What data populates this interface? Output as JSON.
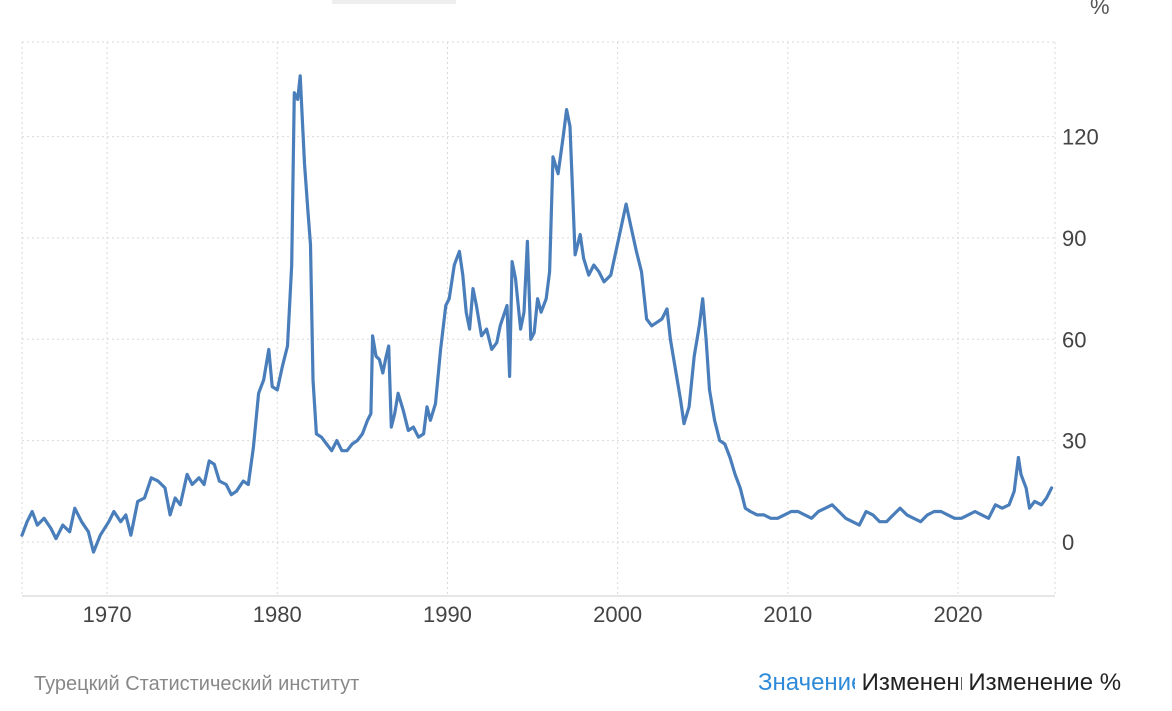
{
  "source_label": "Турецкий Статистический институт",
  "mode_tabs": [
    {
      "label": "Значение",
      "active": true
    },
    {
      "label": "Изменение",
      "active": false
    },
    {
      "label": "Изменение %",
      "active": false
    }
  ],
  "colors": {
    "line": "#4a7ebb",
    "grid": "#d9d9d9",
    "axis_text": "#444444",
    "active_tab": "#2e8ad8"
  },
  "chart_data": {
    "type": "line",
    "title": "",
    "xlabel": "",
    "ylabel": "%",
    "xlim": [
      1965.0,
      2025.7
    ],
    "ylim": [
      -16,
      148
    ],
    "yticks": [
      0,
      30,
      60,
      90,
      120
    ],
    "xticks": [
      1970,
      1980,
      1990,
      2000,
      2010,
      2020
    ],
    "grid": true,
    "legend": "none",
    "series": [
      {
        "name": "",
        "points": [
          [
            1965.0,
            2
          ],
          [
            1965.3,
            6
          ],
          [
            1965.6,
            9
          ],
          [
            1965.9,
            5
          ],
          [
            1966.3,
            7
          ],
          [
            1966.7,
            4
          ],
          [
            1967.0,
            1
          ],
          [
            1967.4,
            5
          ],
          [
            1967.8,
            3
          ],
          [
            1968.1,
            10
          ],
          [
            1968.5,
            6
          ],
          [
            1968.9,
            3
          ],
          [
            1969.2,
            -3
          ],
          [
            1969.6,
            2
          ],
          [
            1970.1,
            6
          ],
          [
            1970.4,
            9
          ],
          [
            1970.8,
            6
          ],
          [
            1971.1,
            8
          ],
          [
            1971.4,
            2
          ],
          [
            1971.8,
            12
          ],
          [
            1972.2,
            13
          ],
          [
            1972.6,
            19
          ],
          [
            1973.0,
            18
          ],
          [
            1973.4,
            16
          ],
          [
            1973.7,
            8
          ],
          [
            1974.0,
            13
          ],
          [
            1974.3,
            11
          ],
          [
            1974.7,
            20
          ],
          [
            1975.0,
            17
          ],
          [
            1975.4,
            19
          ],
          [
            1975.7,
            17
          ],
          [
            1976.0,
            24
          ],
          [
            1976.3,
            23
          ],
          [
            1976.6,
            18
          ],
          [
            1977.0,
            17
          ],
          [
            1977.3,
            14
          ],
          [
            1977.6,
            15
          ],
          [
            1978.0,
            18
          ],
          [
            1978.3,
            17
          ],
          [
            1978.6,
            28
          ],
          [
            1978.9,
            44
          ],
          [
            1979.2,
            48
          ],
          [
            1979.5,
            57
          ],
          [
            1979.7,
            46
          ],
          [
            1980.0,
            45
          ],
          [
            1980.3,
            52
          ],
          [
            1980.6,
            58
          ],
          [
            1980.85,
            82
          ],
          [
            1981.0,
            133
          ],
          [
            1981.2,
            131
          ],
          [
            1981.35,
            138
          ],
          [
            1981.6,
            112
          ],
          [
            1981.8,
            98
          ],
          [
            1981.95,
            88
          ],
          [
            1982.1,
            48
          ],
          [
            1982.3,
            32
          ],
          [
            1982.6,
            31
          ],
          [
            1982.9,
            29
          ],
          [
            1983.2,
            27
          ],
          [
            1983.5,
            30
          ],
          [
            1983.8,
            27
          ],
          [
            1984.1,
            27
          ],
          [
            1984.4,
            29
          ],
          [
            1984.7,
            30
          ],
          [
            1985.0,
            32
          ],
          [
            1985.3,
            36
          ],
          [
            1985.5,
            38
          ],
          [
            1985.6,
            61
          ],
          [
            1985.8,
            55
          ],
          [
            1986.0,
            54
          ],
          [
            1986.2,
            50
          ],
          [
            1986.4,
            55
          ],
          [
            1986.55,
            58
          ],
          [
            1986.7,
            34
          ],
          [
            1986.9,
            38
          ],
          [
            1987.1,
            44
          ],
          [
            1987.4,
            39
          ],
          [
            1987.7,
            33
          ],
          [
            1988.0,
            34
          ],
          [
            1988.3,
            31
          ],
          [
            1988.6,
            32
          ],
          [
            1988.8,
            40
          ],
          [
            1989.0,
            36
          ],
          [
            1989.3,
            41
          ],
          [
            1989.6,
            57
          ],
          [
            1989.9,
            70
          ],
          [
            1990.1,
            72
          ],
          [
            1990.4,
            82
          ],
          [
            1990.7,
            86
          ],
          [
            1990.9,
            79
          ],
          [
            1991.1,
            68
          ],
          [
            1991.3,
            63
          ],
          [
            1991.5,
            75
          ],
          [
            1991.7,
            70
          ],
          [
            1992.0,
            61
          ],
          [
            1992.3,
            63
          ],
          [
            1992.6,
            57
          ],
          [
            1992.9,
            59
          ],
          [
            1993.1,
            64
          ],
          [
            1993.3,
            67
          ],
          [
            1993.5,
            70
          ],
          [
            1993.65,
            49
          ],
          [
            1993.8,
            83
          ],
          [
            1994.0,
            78
          ],
          [
            1994.3,
            63
          ],
          [
            1994.5,
            68
          ],
          [
            1994.7,
            89
          ],
          [
            1994.9,
            60
          ],
          [
            1995.1,
            62
          ],
          [
            1995.3,
            72
          ],
          [
            1995.5,
            68
          ],
          [
            1995.8,
            72
          ],
          [
            1996.0,
            80
          ],
          [
            1996.2,
            114
          ],
          [
            1996.5,
            109
          ],
          [
            1996.8,
            120
          ],
          [
            1997.0,
            128
          ],
          [
            1997.2,
            123
          ],
          [
            1997.5,
            85
          ],
          [
            1997.8,
            91
          ],
          [
            1998.0,
            84
          ],
          [
            1998.3,
            79
          ],
          [
            1998.6,
            82
          ],
          [
            1998.9,
            80
          ],
          [
            1999.2,
            77
          ],
          [
            1999.6,
            79
          ],
          [
            1999.9,
            86
          ],
          [
            2000.2,
            93
          ],
          [
            2000.5,
            100
          ],
          [
            2000.8,
            93
          ],
          [
            2001.1,
            86
          ],
          [
            2001.4,
            80
          ],
          [
            2001.7,
            66
          ],
          [
            2002.0,
            64
          ],
          [
            2002.3,
            65
          ],
          [
            2002.6,
            66
          ],
          [
            2002.9,
            69
          ],
          [
            2003.1,
            60
          ],
          [
            2003.4,
            51
          ],
          [
            2003.7,
            42
          ],
          [
            2003.9,
            35
          ],
          [
            2004.2,
            40
          ],
          [
            2004.5,
            55
          ],
          [
            2004.8,
            64
          ],
          [
            2005.0,
            72
          ],
          [
            2005.2,
            60
          ],
          [
            2005.4,
            45
          ],
          [
            2005.7,
            36
          ],
          [
            2006.0,
            30
          ],
          [
            2006.3,
            29
          ],
          [
            2006.6,
            25
          ],
          [
            2006.9,
            20
          ],
          [
            2007.2,
            16
          ],
          [
            2007.5,
            10
          ],
          [
            2007.8,
            9
          ],
          [
            2008.2,
            8
          ],
          [
            2008.6,
            8
          ],
          [
            2009.0,
            7
          ],
          [
            2009.4,
            7
          ],
          [
            2009.8,
            8
          ],
          [
            2010.2,
            9
          ],
          [
            2010.6,
            9
          ],
          [
            2011.0,
            8
          ],
          [
            2011.4,
            7
          ],
          [
            2011.8,
            9
          ],
          [
            2012.2,
            10
          ],
          [
            2012.6,
            11
          ],
          [
            2013.0,
            9
          ],
          [
            2013.4,
            7
          ],
          [
            2013.8,
            6
          ],
          [
            2014.2,
            5
          ],
          [
            2014.6,
            9
          ],
          [
            2015.0,
            8
          ],
          [
            2015.4,
            6
          ],
          [
            2015.8,
            6
          ],
          [
            2016.2,
            8
          ],
          [
            2016.6,
            10
          ],
          [
            2017.0,
            8
          ],
          [
            2017.4,
            7
          ],
          [
            2017.8,
            6
          ],
          [
            2018.2,
            8
          ],
          [
            2018.6,
            9
          ],
          [
            2019.0,
            9
          ],
          [
            2019.4,
            8
          ],
          [
            2019.8,
            7
          ],
          [
            2020.2,
            7
          ],
          [
            2020.6,
            8
          ],
          [
            2021.0,
            9
          ],
          [
            2021.4,
            8
          ],
          [
            2021.8,
            7
          ],
          [
            2022.2,
            11
          ],
          [
            2022.6,
            10
          ],
          [
            2023.0,
            11
          ],
          [
            2023.3,
            15
          ],
          [
            2023.55,
            25
          ],
          [
            2023.7,
            20
          ],
          [
            2024.0,
            16
          ],
          [
            2024.2,
            10
          ],
          [
            2024.5,
            12
          ],
          [
            2024.9,
            11
          ],
          [
            2025.2,
            13
          ],
          [
            2025.5,
            16
          ]
        ]
      }
    ]
  }
}
